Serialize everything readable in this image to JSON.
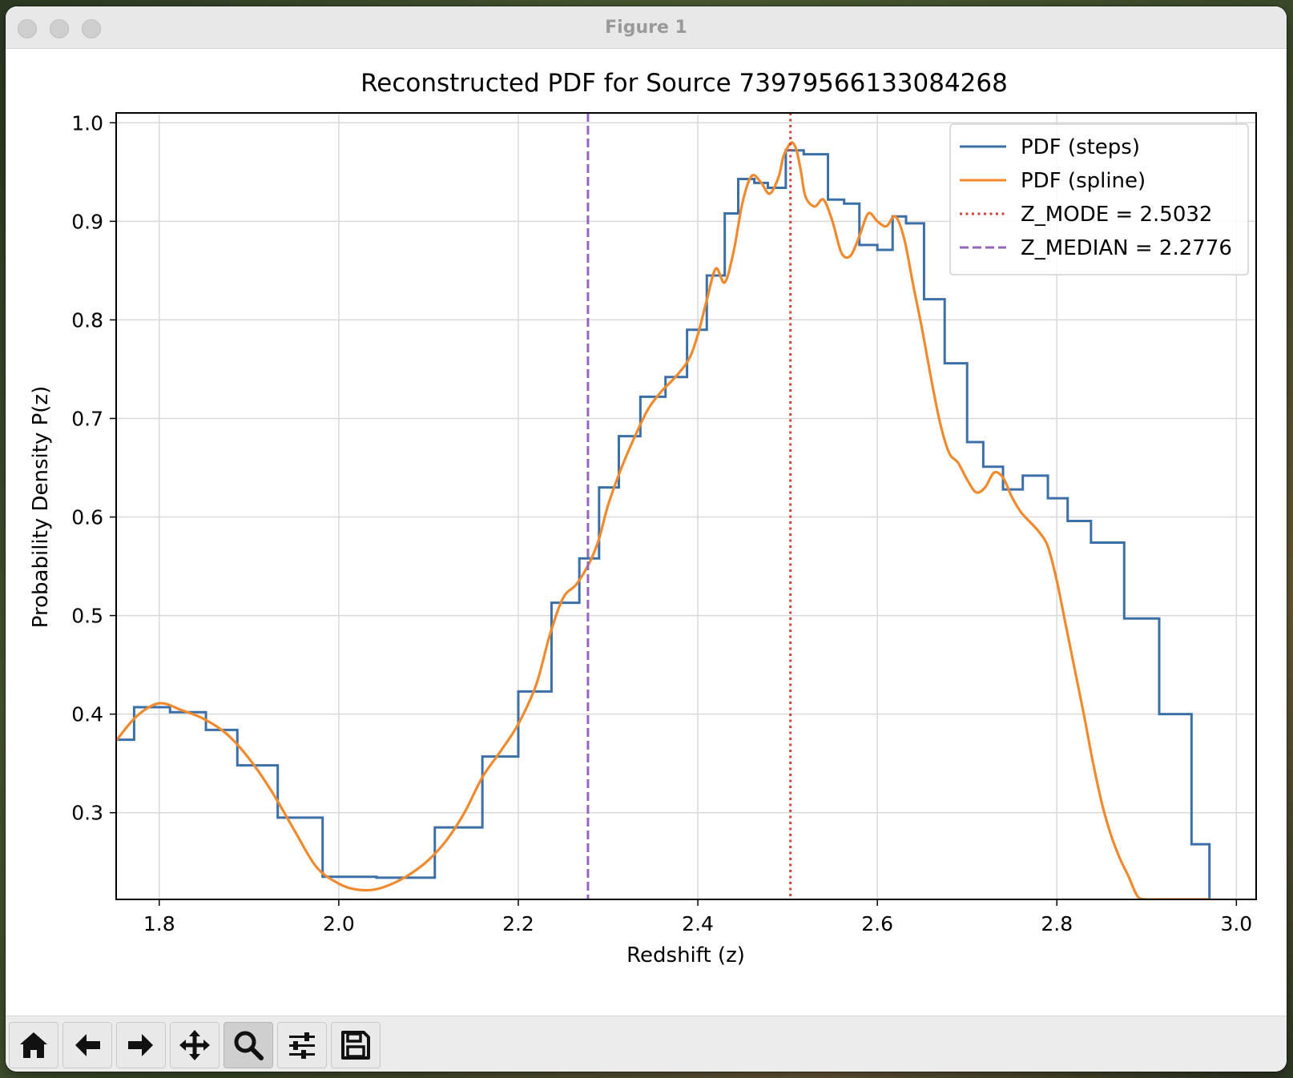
{
  "window": {
    "title": "Figure 1"
  },
  "toolbar": {
    "buttons": [
      {
        "name": "home-button",
        "icon": "home-icon",
        "active": false
      },
      {
        "name": "back-button",
        "icon": "arrow-left-icon",
        "active": false
      },
      {
        "name": "forward-button",
        "icon": "arrow-right-icon",
        "active": false
      },
      {
        "name": "pan-button",
        "icon": "move-icon",
        "active": false
      },
      {
        "name": "zoom-button",
        "icon": "magnifier-icon",
        "active": true
      },
      {
        "name": "configure-subplots-button",
        "icon": "sliders-icon",
        "active": false
      },
      {
        "name": "save-button",
        "icon": "floppy-disk-icon",
        "active": false
      }
    ]
  },
  "chart_data": {
    "type": "line",
    "title": "Reconstructed PDF for Source 73979566133084268",
    "xlabel": "Redshift (z)",
    "ylabel": "Probability Density P(z)",
    "xlim": [
      1.752,
      3.022
    ],
    "ylim": [
      0.212,
      1.01
    ],
    "xticks": [
      1.8,
      2.0,
      2.2,
      2.4,
      2.6,
      2.8,
      3.0
    ],
    "xtick_labels": [
      "1.8",
      "2.0",
      "2.2",
      "2.4",
      "2.6",
      "2.8",
      "3.0"
    ],
    "yticks": [
      0.3,
      0.4,
      0.5,
      0.6,
      0.7,
      0.8,
      0.9,
      1.0
    ],
    "ytick_labels": [
      "0.3",
      "0.4",
      "0.5",
      "0.6",
      "0.7",
      "0.8",
      "0.9",
      "1.0"
    ],
    "grid": true,
    "legend_position": "top-right",
    "series": [
      {
        "name": "PDF (steps)",
        "style": "steps",
        "color": "#3b6fa8",
        "x": [
          1.752,
          1.772,
          1.812,
          1.852,
          1.887,
          1.932,
          1.982,
          2.042,
          2.107,
          2.16,
          2.2,
          2.237,
          2.268,
          2.29,
          2.312,
          2.336,
          2.364,
          2.388,
          2.41,
          2.43,
          2.445,
          2.463,
          2.478,
          2.498,
          2.518,
          2.545,
          2.563,
          2.58,
          2.6,
          2.617,
          2.632,
          2.652,
          2.675,
          2.7,
          2.718,
          2.74,
          2.762,
          2.79,
          2.812,
          2.838,
          2.875,
          2.914,
          2.95
        ],
        "y": [
          0.374,
          0.407,
          0.402,
          0.384,
          0.348,
          0.295,
          0.235,
          0.234,
          0.285,
          0.357,
          0.423,
          0.513,
          0.558,
          0.63,
          0.682,
          0.722,
          0.742,
          0.79,
          0.845,
          0.908,
          0.943,
          0.939,
          0.934,
          0.972,
          0.968,
          0.922,
          0.918,
          0.876,
          0.871,
          0.905,
          0.898,
          0.821,
          0.756,
          0.676,
          0.651,
          0.628,
          0.642,
          0.619,
          0.596,
          0.574,
          0.497,
          0.4,
          0.268
        ],
        "x_end": 2.97
      },
      {
        "name": "PDF (spline)",
        "style": "line",
        "color": "#f08a2e",
        "x": [
          1.752,
          1.775,
          1.8,
          1.825,
          1.85,
          1.875,
          1.9,
          1.925,
          1.95,
          1.975,
          2.0,
          2.02,
          2.04,
          2.06,
          2.08,
          2.1,
          2.12,
          2.14,
          2.16,
          2.18,
          2.2,
          2.22,
          2.235,
          2.25,
          2.265,
          2.28,
          2.29,
          2.3,
          2.315,
          2.33,
          2.345,
          2.36,
          2.375,
          2.39,
          2.4,
          2.41,
          2.42,
          2.43,
          2.44,
          2.45,
          2.46,
          2.47,
          2.48,
          2.49,
          2.495,
          2.5,
          2.505,
          2.51,
          2.515,
          2.52,
          2.53,
          2.54,
          2.55,
          2.56,
          2.57,
          2.58,
          2.59,
          2.6,
          2.61,
          2.62,
          2.63,
          2.64,
          2.65,
          2.66,
          2.67,
          2.68,
          2.69,
          2.7,
          2.71,
          2.72,
          2.73,
          2.74,
          2.75,
          2.76,
          2.77,
          2.78,
          2.79,
          2.8,
          2.81,
          2.82,
          2.83,
          2.84,
          2.85,
          2.86,
          2.87,
          2.88,
          2.89,
          2.9,
          2.91,
          2.92,
          2.93,
          2.94,
          2.95,
          2.96,
          2.97
        ],
        "y": [
          0.373,
          0.398,
          0.411,
          0.404,
          0.395,
          0.38,
          0.355,
          0.322,
          0.283,
          0.245,
          0.228,
          0.222,
          0.222,
          0.228,
          0.238,
          0.252,
          0.272,
          0.3,
          0.336,
          0.362,
          0.39,
          0.43,
          0.48,
          0.518,
          0.532,
          0.555,
          0.578,
          0.612,
          0.65,
          0.682,
          0.71,
          0.728,
          0.742,
          0.76,
          0.785,
          0.82,
          0.852,
          0.838,
          0.87,
          0.92,
          0.946,
          0.94,
          0.928,
          0.945,
          0.965,
          0.975,
          0.98,
          0.972,
          0.95,
          0.925,
          0.915,
          0.922,
          0.9,
          0.868,
          0.865,
          0.885,
          0.908,
          0.9,
          0.895,
          0.905,
          0.882,
          0.835,
          0.79,
          0.74,
          0.695,
          0.665,
          0.655,
          0.638,
          0.625,
          0.63,
          0.645,
          0.64,
          0.62,
          0.605,
          0.595,
          0.585,
          0.57,
          0.535,
          0.49,
          0.445,
          0.4,
          0.352,
          0.31,
          0.278,
          0.254,
          0.235,
          0.215,
          0.212,
          0.212,
          0.212,
          0.212,
          0.212,
          0.212,
          0.212,
          0.212
        ]
      },
      {
        "name": "Z_MODE = 2.5032",
        "style": "vline-dotted",
        "color": "#d0423a",
        "x": 2.5032
      },
      {
        "name": "Z_MEDIAN = 2.2776",
        "style": "vline-dashed",
        "color": "#9467bd",
        "x": 2.2776
      }
    ]
  }
}
